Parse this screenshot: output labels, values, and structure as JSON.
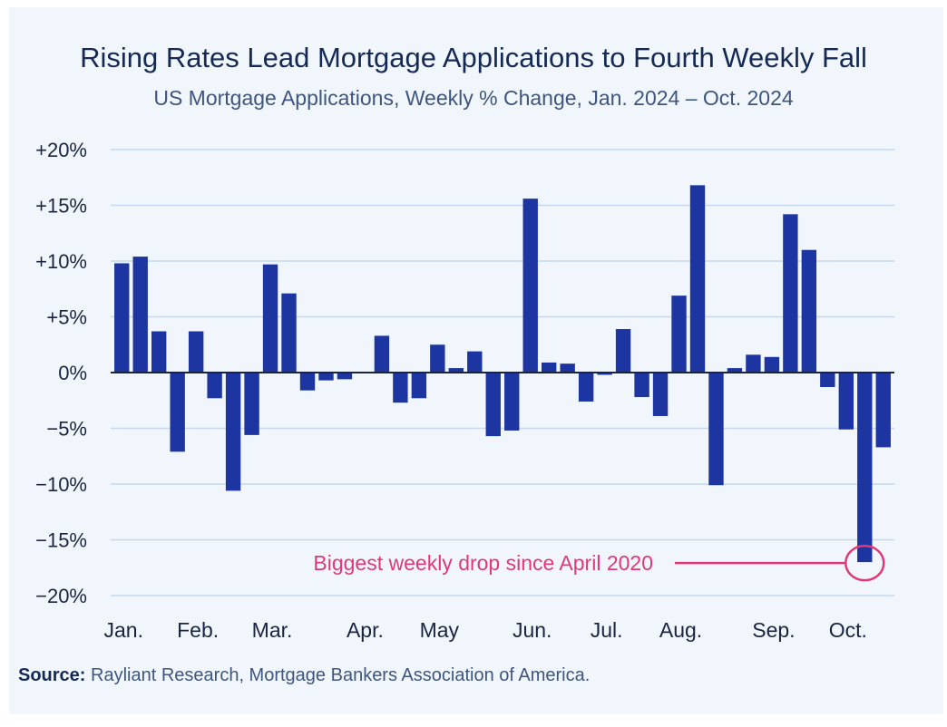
{
  "title": "Rising Rates Lead Mortgage Applications to Fourth Weekly Fall",
  "subtitle": "US Mortgage Applications, Weekly % Change, Jan. 2024 – Oct. 2024",
  "source": {
    "label": "Source:",
    "text": "Rayliant Research, Mortgage Bankers Association of America."
  },
  "colors": {
    "bar": "#1c35a0",
    "annotation": "#e0387a",
    "grid": "#c6d8f0",
    "text": "#1a2440"
  },
  "chart_data": {
    "type": "bar",
    "ylim": [
      -20,
      20
    ],
    "yticks": [
      20,
      15,
      10,
      5,
      0,
      -5,
      -10,
      -15,
      -20
    ],
    "ytick_labels": [
      "+20%",
      "+15%",
      "+10%",
      "+5%",
      "0%",
      "−5%",
      "−10%",
      "−15%",
      "−20%"
    ],
    "month_labels": [
      {
        "label": "Jan.",
        "week": 0
      },
      {
        "label": "Feb.",
        "week": 4
      },
      {
        "label": "Mar.",
        "week": 8
      },
      {
        "label": "Apr.",
        "week": 13
      },
      {
        "label": "May",
        "week": 17
      },
      {
        "label": "Jun.",
        "week": 22
      },
      {
        "label": "Jul.",
        "week": 26
      },
      {
        "label": "Aug.",
        "week": 30
      },
      {
        "label": "Sep.",
        "week": 35
      },
      {
        "label": "Oct.",
        "week": 39
      }
    ],
    "values": [
      9.8,
      10.4,
      3.7,
      -7.1,
      3.7,
      -2.3,
      -10.6,
      -5.6,
      9.7,
      7.1,
      -1.6,
      -0.7,
      -0.6,
      0.0,
      3.3,
      -2.7,
      -2.3,
      2.5,
      0.4,
      1.9,
      -5.7,
      -5.2,
      15.6,
      0.9,
      0.8,
      -2.6,
      -0.2,
      3.9,
      -2.2,
      -3.9,
      6.9,
      16.8,
      -10.1,
      0.4,
      1.6,
      1.4,
      14.2,
      11.0,
      -1.3,
      -5.1,
      -17.0,
      -6.7
    ],
    "annotation": {
      "text": "Biggest weekly drop since April 2020",
      "week": 40,
      "value": -17.0
    }
  }
}
